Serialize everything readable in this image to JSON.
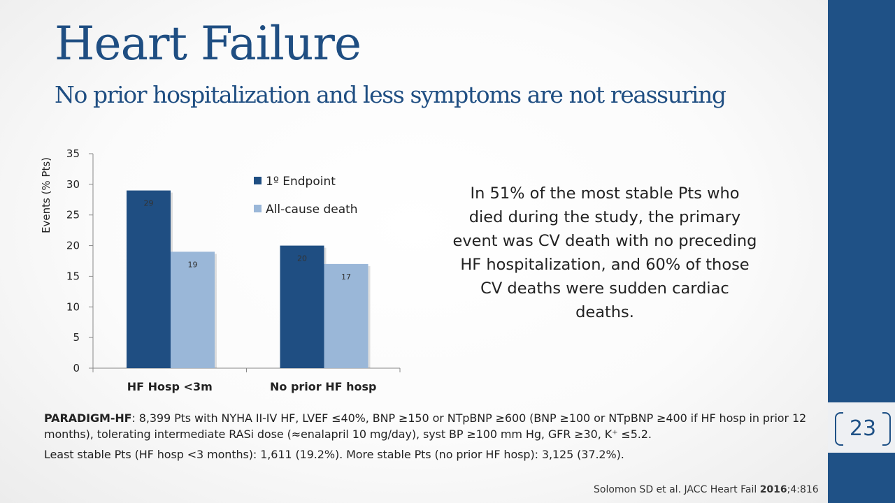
{
  "slide": {
    "title": "Heart Failure",
    "subtitle": "No prior hospitalization and less symptoms are not reassuring",
    "page_number": "23",
    "colors": {
      "accent": "#1f5186",
      "endpoint": "#1f4e82",
      "death": "#9ab7d8"
    }
  },
  "chart_data": {
    "type": "bar",
    "categories": [
      "HF Hosp <3m",
      "No prior HF hosp"
    ],
    "series": [
      {
        "name": "1º Endpoint",
        "values": [
          29,
          20
        ],
        "labels": [
          "29",
          "20"
        ]
      },
      {
        "name": "All-cause death",
        "values": [
          19,
          17
        ],
        "labels": [
          "19",
          "17"
        ]
      }
    ],
    "ylabel": "Events (% Pts)",
    "xlabel": "",
    "ylim": [
      0,
      35
    ],
    "yticks": [
      "0",
      "5",
      "10",
      "15",
      "20",
      "25",
      "30",
      "35"
    ],
    "grid": false,
    "legend": "top-right"
  },
  "callout": "In 51% of the most stable Pts who died during the study, the primary event was CV death with no preceding HF hospitalization, and 60% of those CV deaths were sudden cardiac deaths.",
  "notes": {
    "trial_name": "PARADIGM-HF",
    "trial_text": ": 8,399 Pts with NYHA II-IV HF, LVEF ≤40%, BNP ≥150 or NTpBNP ≥600 (BNP ≥100 or NTpBNP ≥400 if HF hosp in prior 12 months), tolerating intermediate RASi dose (≈enalapril 10 mg/day), syst BP ≥100 mm Hg, GFR ≥30, K⁺ ≤5.2.",
    "stability_text": "Least stable Pts (HF hosp <3 months): 1,611 (19.2%). More stable Pts (no prior HF hosp): 3,125 (37.2%)."
  },
  "citation": {
    "prefix": "Solomon SD et al. JACC Heart Fail ",
    "year": "2016",
    "suffix": ";4:816"
  }
}
